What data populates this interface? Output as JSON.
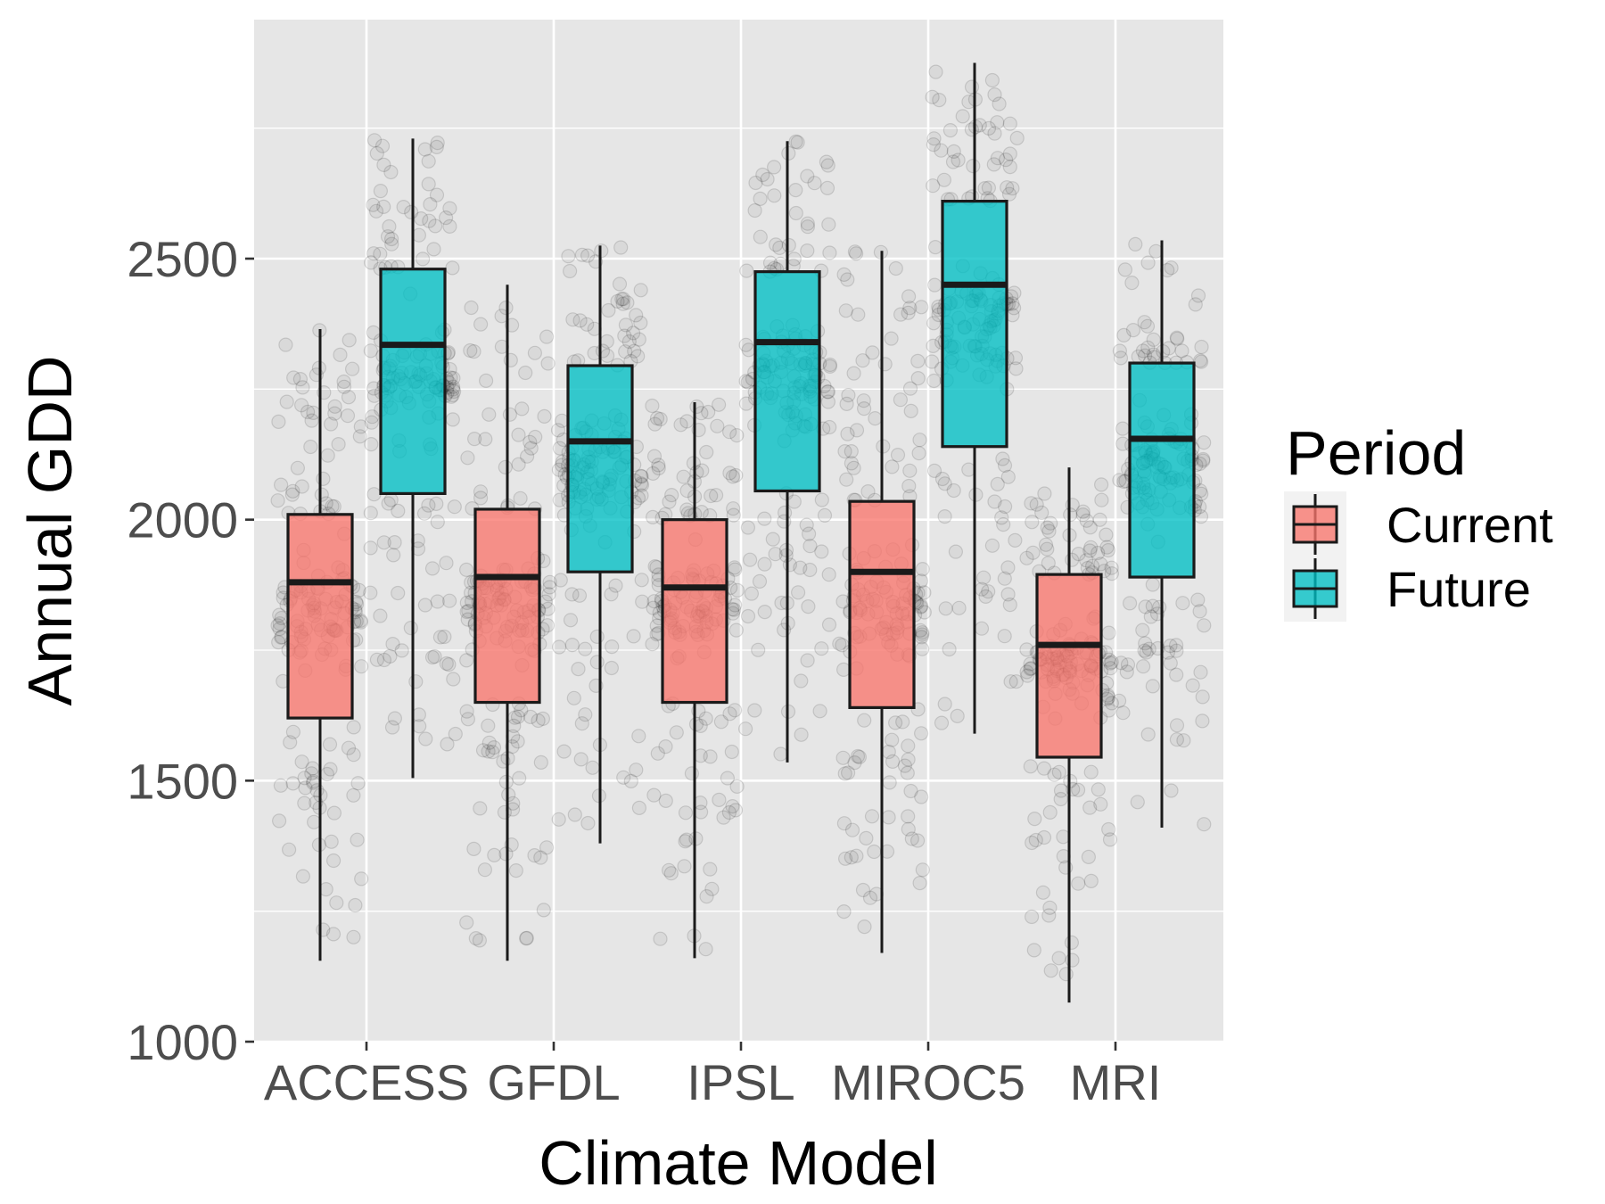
{
  "chart_data": {
    "type": "box",
    "xlabel": "Climate Model",
    "ylabel": "Annual GDD",
    "ylim": [
      1000,
      2900
    ],
    "yticks": [
      1000,
      1500,
      2000,
      2500
    ],
    "ytick_labels": [
      "1000",
      "1500",
      "2000",
      "2500"
    ],
    "categories": [
      "ACCESS",
      "GFDL",
      "IPSL",
      "MIROC5",
      "MRI"
    ],
    "grid": true,
    "points_overlay": "jittered individual years, semi-transparent grey",
    "legend": {
      "title": "Period",
      "position": "right",
      "entries": [
        {
          "label": "Current",
          "color": "#F8766D"
        },
        {
          "label": "Future",
          "color": "#00BFC4"
        }
      ]
    },
    "series": [
      {
        "name": "Current",
        "color": "#F8766D",
        "boxes": [
          {
            "category": "ACCESS",
            "whisker_low": 1155,
            "q1": 1620,
            "median": 1880,
            "q3": 2010,
            "whisker_high": 2365
          },
          {
            "category": "GFDL",
            "whisker_low": 1155,
            "q1": 1650,
            "median": 1890,
            "q3": 2020,
            "whisker_high": 2450
          },
          {
            "category": "IPSL",
            "whisker_low": 1160,
            "q1": 1650,
            "median": 1870,
            "q3": 2000,
            "whisker_high": 2225
          },
          {
            "category": "MIROC5",
            "whisker_low": 1170,
            "q1": 1640,
            "median": 1900,
            "q3": 2035,
            "whisker_high": 2515
          },
          {
            "category": "MRI",
            "whisker_low": 1075,
            "q1": 1545,
            "median": 1760,
            "q3": 1895,
            "whisker_high": 2100
          }
        ]
      },
      {
        "name": "Future",
        "color": "#00BFC4",
        "boxes": [
          {
            "category": "ACCESS",
            "whisker_low": 1505,
            "q1": 2050,
            "median": 2335,
            "q3": 2480,
            "whisker_high": 2730
          },
          {
            "category": "GFDL",
            "whisker_low": 1380,
            "q1": 1900,
            "median": 2150,
            "q3": 2295,
            "whisker_high": 2525
          },
          {
            "category": "IPSL",
            "whisker_low": 1535,
            "q1": 2055,
            "median": 2340,
            "q3": 2475,
            "whisker_high": 2725
          },
          {
            "category": "MIROC5",
            "whisker_low": 1590,
            "q1": 2140,
            "median": 2450,
            "q3": 2610,
            "whisker_high": 2875
          },
          {
            "category": "MRI",
            "whisker_low": 1410,
            "q1": 1890,
            "median": 2155,
            "q3": 2300,
            "whisker_high": 2535
          }
        ]
      }
    ]
  }
}
